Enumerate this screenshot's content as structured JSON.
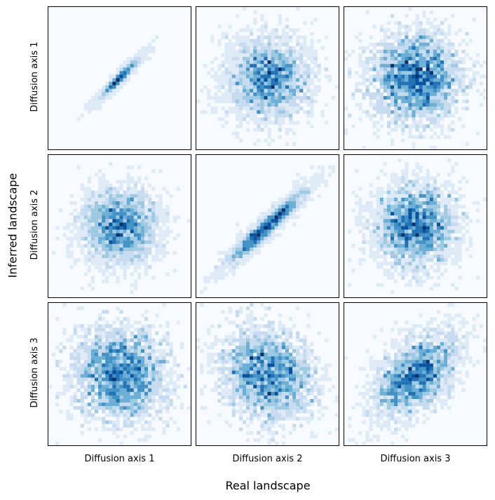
{
  "figure": {
    "xlabel": "Real landscape",
    "ylabel": "Inferred landscape"
  },
  "chart_data": {
    "type": "heatmap",
    "grid": false,
    "colormap": [
      "#f7fbff",
      "#deebf7",
      "#c6dbef",
      "#9ecae1",
      "#6baed6",
      "#4292c6",
      "#2171b5",
      "#08519c",
      "#08306b"
    ],
    "bins": 40,
    "column_labels": [
      "Diffusion axis 1",
      "Diffusion axis 2",
      "Diffusion axis 3"
    ],
    "row_labels": [
      "Diffusion axis 1",
      "Diffusion axis 2",
      "Diffusion axis 3"
    ],
    "panels": [
      {
        "row": 0,
        "col": 0,
        "x_label": "Diffusion axis 1",
        "y_label": "Diffusion axis 1",
        "correlation": 0.97,
        "spread": 0.16
      },
      {
        "row": 0,
        "col": 1,
        "x_label": "Diffusion axis 2",
        "y_label": "Diffusion axis 1",
        "correlation": 0.0,
        "spread": 0.5
      },
      {
        "row": 0,
        "col": 2,
        "x_label": "Diffusion axis 3",
        "y_label": "Diffusion axis 1",
        "correlation": 0.0,
        "spread": 0.55
      },
      {
        "row": 1,
        "col": 0,
        "x_label": "Diffusion axis 1",
        "y_label": "Diffusion axis 2",
        "correlation": 0.0,
        "spread": 0.45
      },
      {
        "row": 1,
        "col": 1,
        "x_label": "Diffusion axis 2",
        "y_label": "Diffusion axis 2",
        "correlation": 0.9,
        "spread": 0.3
      },
      {
        "row": 1,
        "col": 2,
        "x_label": "Diffusion axis 3",
        "y_label": "Diffusion axis 2",
        "correlation": 0.05,
        "spread": 0.5
      },
      {
        "row": 2,
        "col": 0,
        "x_label": "Diffusion axis 1",
        "y_label": "Diffusion axis 3",
        "correlation": -0.05,
        "spread": 0.55
      },
      {
        "row": 2,
        "col": 1,
        "x_label": "Diffusion axis 2",
        "y_label": "Diffusion axis 3",
        "correlation": -0.2,
        "spread": 0.55
      },
      {
        "row": 2,
        "col": 2,
        "x_label": "Diffusion axis 3",
        "y_label": "Diffusion axis 3",
        "correlation": 0.5,
        "spread": 0.5
      }
    ]
  }
}
